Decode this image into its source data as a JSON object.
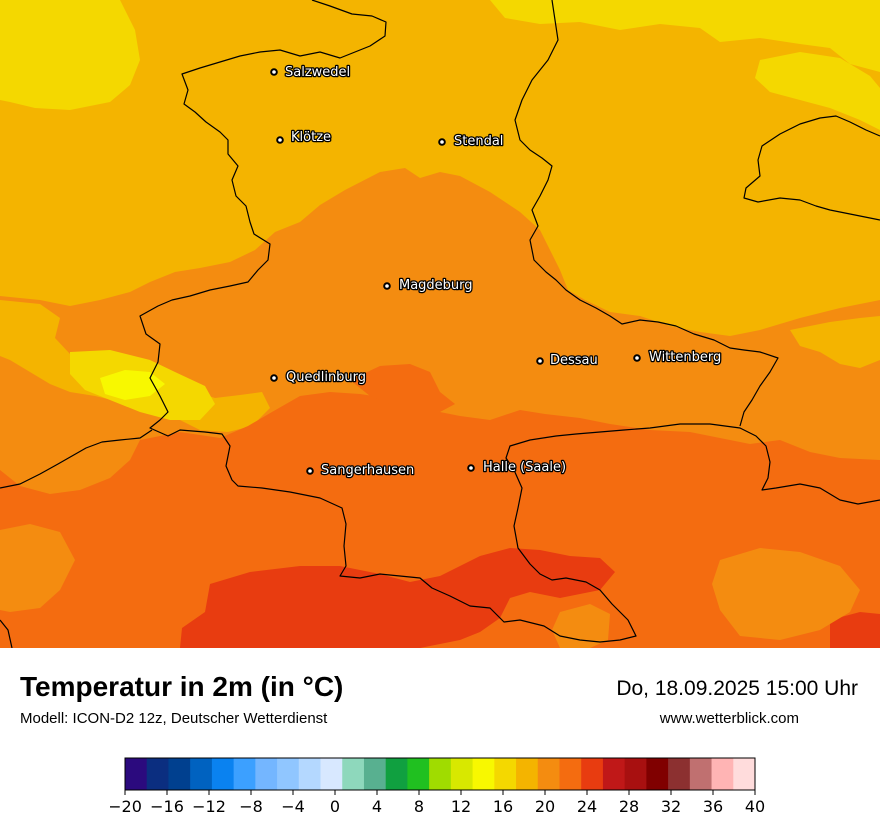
{
  "map": {
    "cities": [
      {
        "name": "Salzwedel"
      },
      {
        "name": "Klötze"
      },
      {
        "name": "Stendal"
      },
      {
        "name": "Magdeburg"
      },
      {
        "name": "Dessau"
      },
      {
        "name": "Wittenberg"
      },
      {
        "name": "Quedlinburg"
      },
      {
        "name": "Sangerhausen"
      },
      {
        "name": "Halle (Saale)"
      }
    ]
  },
  "footer": {
    "title": "Temperatur in 2m (in °C)",
    "subtitle": "Modell: ICON-D2 12z, Deutscher Wetterdienst",
    "datetime": "Do, 18.09.2025 15:00 Uhr",
    "website": "www.wetterblick.com"
  },
  "legend": {
    "min": -20,
    "max": 40,
    "ticks": [
      "−20",
      "−16",
      "−12",
      "−8",
      "−4",
      "0",
      "4",
      "8",
      "12",
      "16",
      "20",
      "24",
      "28",
      "32",
      "36",
      "40"
    ],
    "colors": [
      "#2b0a7e",
      "#0b2e80",
      "#00408f",
      "#0062c0",
      "#0a82f0",
      "#3ca0ff",
      "#74b6ff",
      "#90c6ff",
      "#b4d8ff",
      "#d8e8ff",
      "#8ed8bc",
      "#58b090",
      "#10a040",
      "#20c020",
      "#a0dc00",
      "#d8e800",
      "#f8f800",
      "#f4d800",
      "#f4b400",
      "#f48c10",
      "#f46c10",
      "#e83c10",
      "#c01818",
      "#a81010",
      "#800000",
      "#8c3030",
      "#c07070",
      "#ffb4b4",
      "#ffdcdc"
    ]
  }
}
